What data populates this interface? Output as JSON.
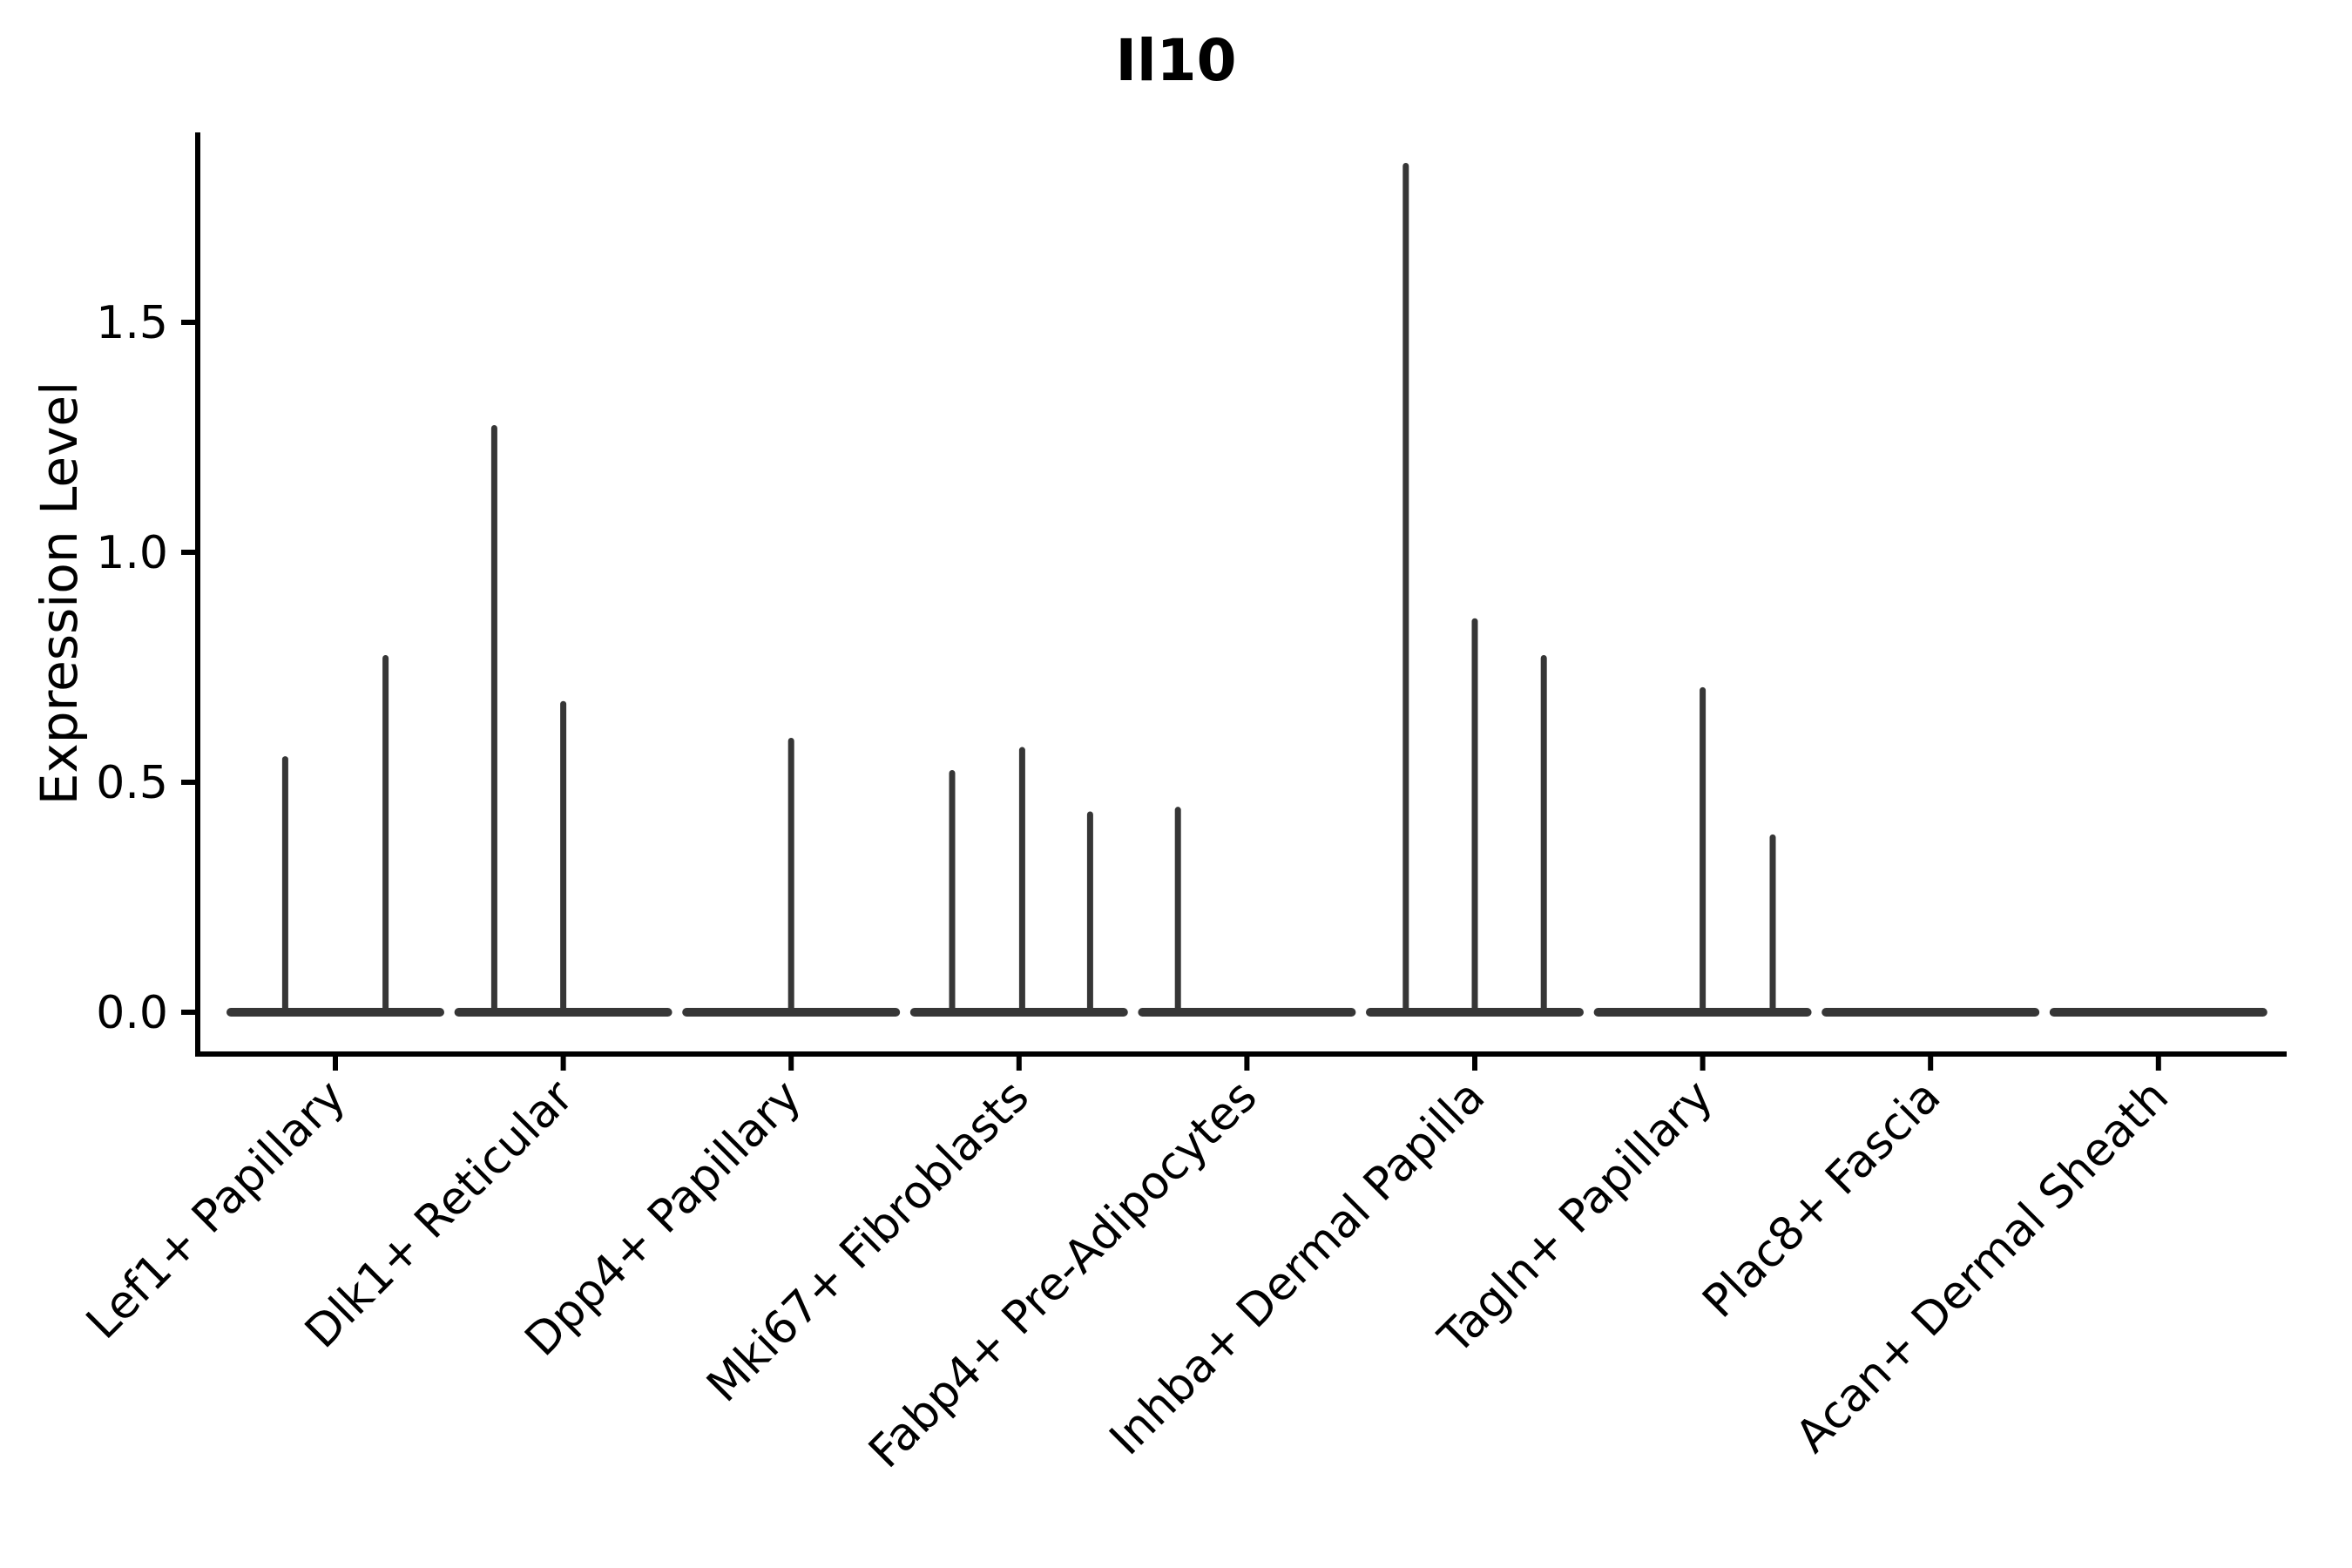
{
  "figure": {
    "title": "Il10",
    "y_axis": {
      "label": "Expression Level",
      "tick_labels": [
        "0.0",
        "0.5",
        "1.0",
        "1.5"
      ],
      "tick_values": [
        0.0,
        0.5,
        1.0,
        1.5
      ]
    },
    "x_axis": {
      "categories": [
        "Lef1+ Papillary",
        "Dlk1+ Reticular",
        "Dpp4+ Papillary",
        "Mki67+ Fibroblasts",
        "Fabp4+ Pre-Adipocytes",
        "Inhba+ Dermal Papilla",
        "Tagln+ Papillary",
        "Plac8+ Fascia",
        "Acan+ Dermal Sheath"
      ]
    }
  },
  "chart_data": {
    "type": "violin",
    "title": "Il10",
    "xlabel": "",
    "ylabel": "Expression Level",
    "ylim": [
      -0.09,
      1.91
    ],
    "yticks": [
      0.0,
      0.5,
      1.0,
      1.5
    ],
    "ytick_labels": [
      "0.0",
      "0.5",
      "1.0",
      "1.5"
    ],
    "grid": false,
    "legend": "none",
    "categories": [
      "Lef1+ Papillary",
      "Dlk1+ Reticular",
      "Dpp4+ Papillary",
      "Mki67+ Fibroblasts",
      "Fabp4+ Pre-Adipocytes",
      "Inhba+ Dermal Papilla",
      "Tagln+ Papillary",
      "Plac8+ Fascia",
      "Acan+ Dermal Sheath"
    ],
    "description": "Collapsed violins: each category shows a flat density strip at expression 0 with thin vertical spikes for rare expressing cells. offset is the spike position within the violin as a fraction of the half-width (-1 left edge, 0 center, +1 right edge).",
    "violins": [
      {
        "category": "Lef1+ Papillary",
        "baseline_value": 0,
        "spikes": [
          {
            "value": 0.55,
            "offset": -0.48
          },
          {
            "value": 0.77,
            "offset": 0.48
          }
        ]
      },
      {
        "category": "Dlk1+ Reticular",
        "baseline_value": 0,
        "spikes": [
          {
            "value": 1.27,
            "offset": -0.66
          },
          {
            "value": 0.67,
            "offset": 0.0
          }
        ]
      },
      {
        "category": "Dpp4+ Papillary",
        "baseline_value": 0,
        "spikes": [
          {
            "value": 0.59,
            "offset": 0.0
          }
        ]
      },
      {
        "category": "Mki67+ Fibroblasts",
        "baseline_value": 0,
        "spikes": [
          {
            "value": 0.52,
            "offset": -0.64
          },
          {
            "value": 0.57,
            "offset": 0.03
          },
          {
            "value": 0.43,
            "offset": 0.68
          }
        ]
      },
      {
        "category": "Fabp4+ Pre-Adipocytes",
        "baseline_value": 0,
        "spikes": [
          {
            "value": 0.44,
            "offset": -0.66
          }
        ]
      },
      {
        "category": "Inhba+ Dermal Papilla",
        "baseline_value": 0,
        "spikes": [
          {
            "value": 1.84,
            "offset": -0.66
          },
          {
            "value": 0.85,
            "offset": 0.0
          },
          {
            "value": 0.77,
            "offset": 0.66
          }
        ]
      },
      {
        "category": "Tagln+ Papillary",
        "baseline_value": 0,
        "spikes": [
          {
            "value": 0.7,
            "offset": 0.0
          },
          {
            "value": 0.38,
            "offset": 0.67
          }
        ]
      },
      {
        "category": "Plac8+ Fascia",
        "baseline_value": 0,
        "spikes": []
      },
      {
        "category": "Acan+ Dermal Sheath",
        "baseline_value": 0,
        "spikes": []
      }
    ],
    "colors": {
      "violin_stroke": "#363636",
      "axis": "#000000",
      "text": "#000000",
      "background": "#ffffff"
    }
  }
}
